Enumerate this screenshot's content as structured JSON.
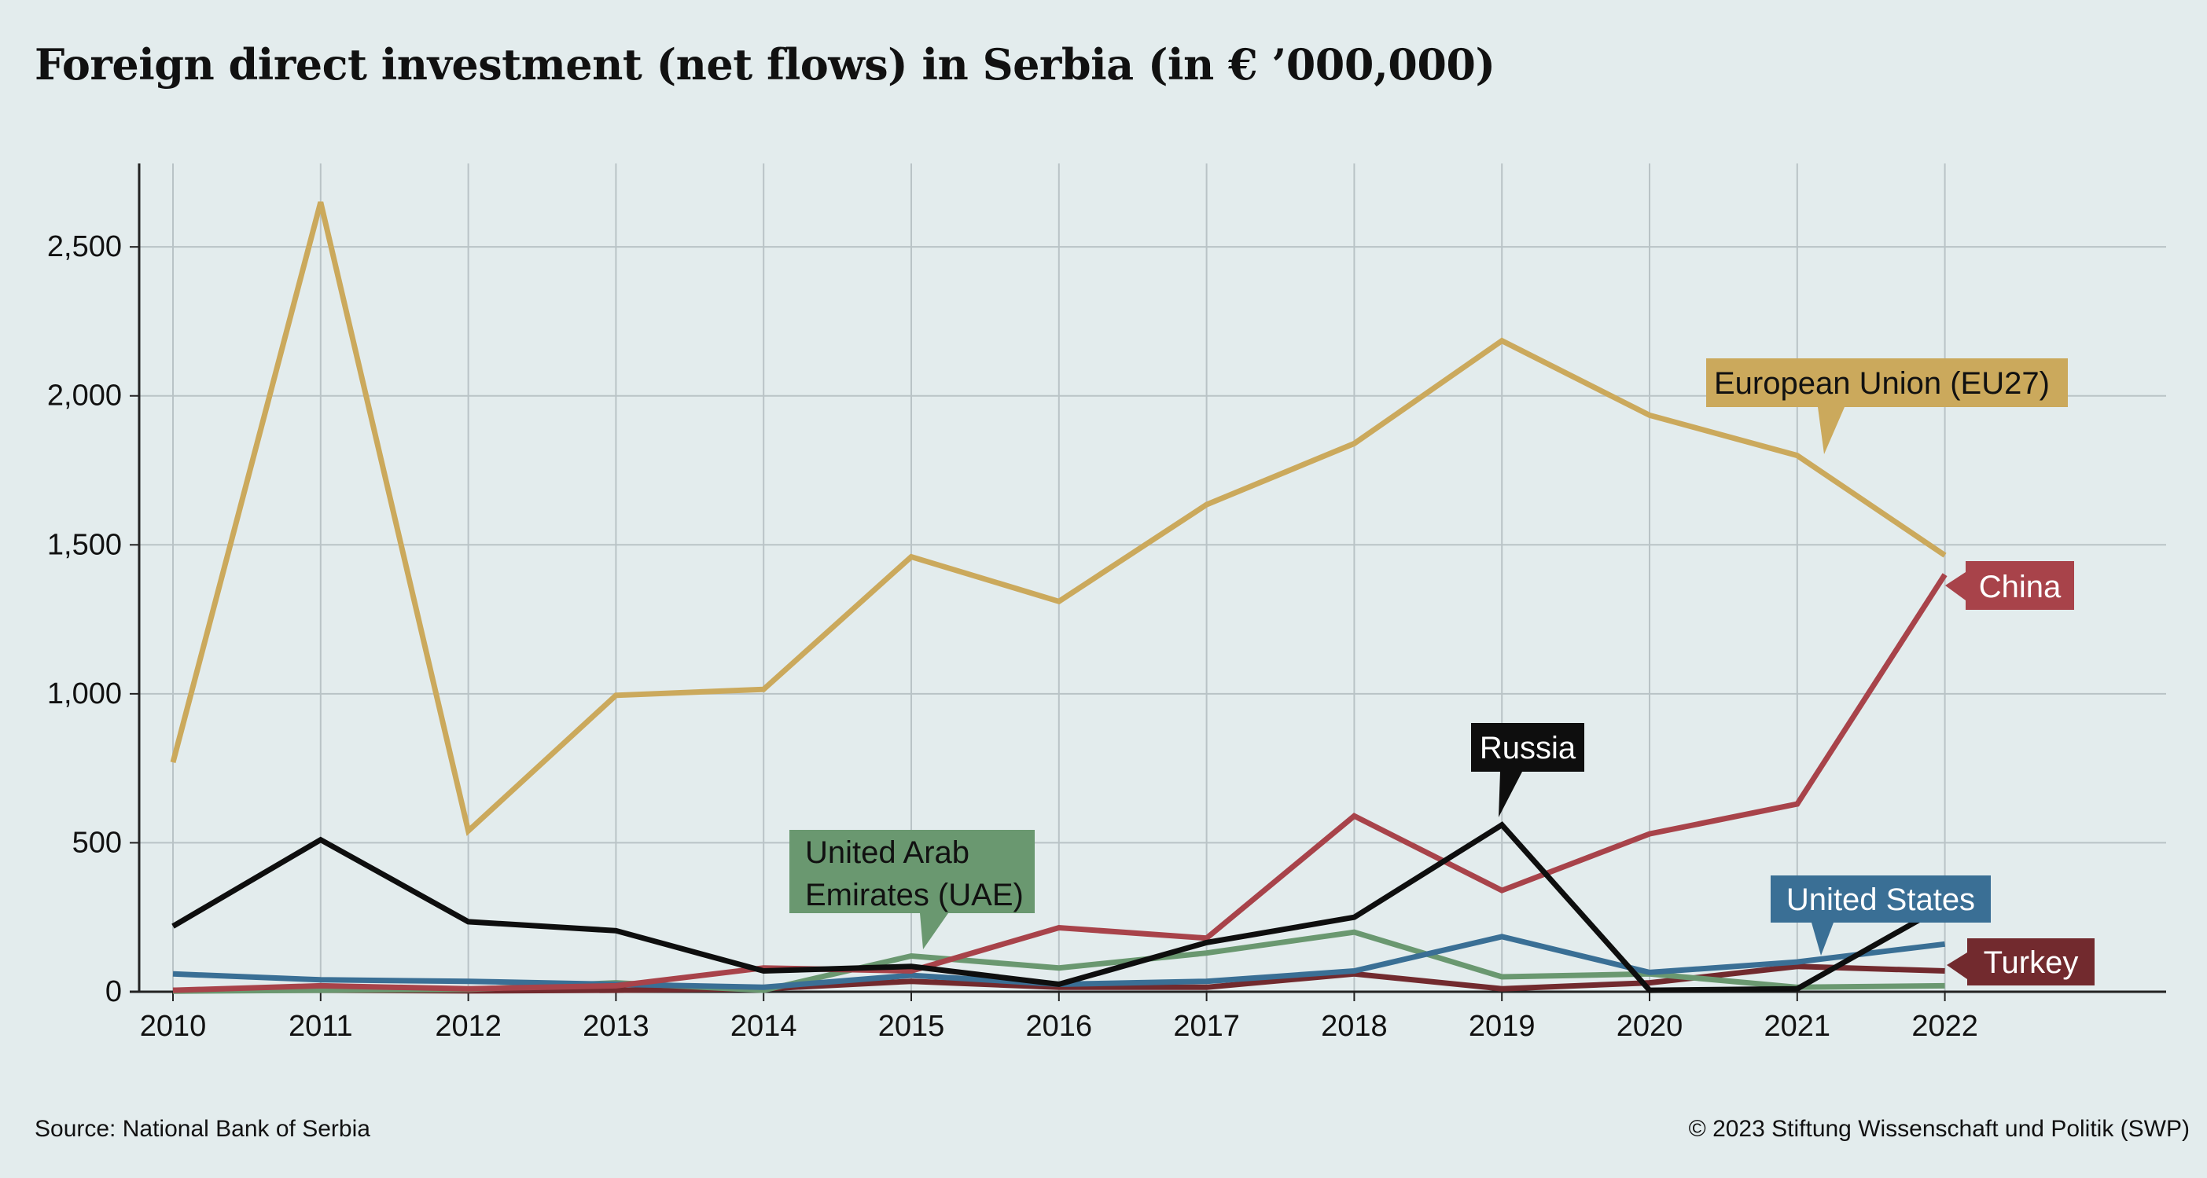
{
  "title": "Foreign direct investment (net flows) in Serbia (in € ’000,000)",
  "source": "Source: National Bank of Serbia",
  "copyright": "© 2023 Stiftung Wissenschaft und Politik (SWP)",
  "chart_data": {
    "type": "line",
    "title": "Foreign direct investment (net flows) in Serbia (in € ’000,000)",
    "xlabel": "",
    "ylabel": "",
    "x": [
      2010,
      2011,
      2012,
      2013,
      2014,
      2015,
      2016,
      2017,
      2018,
      2019,
      2020,
      2021,
      2022
    ],
    "ylim": [
      0,
      2780
    ],
    "yticks": [
      0,
      500,
      1000,
      1500,
      2000,
      2500
    ],
    "ytick_labels": [
      "0",
      "500",
      "1,000",
      "1,500",
      "2,000",
      "2,500"
    ],
    "grid": true,
    "legend": "direct labels",
    "series": [
      {
        "name": "Turkey",
        "color": "#722a2e",
        "values": [
          5,
          5,
          3,
          5,
          10,
          35,
          15,
          15,
          60,
          10,
          30,
          85,
          70
        ]
      },
      {
        "name": "United Arab Emirates (UAE)",
        "label_lines": [
          "United Arab",
          "Emirates (UAE)"
        ],
        "color": "#6a9870",
        "values": [
          2,
          5,
          8,
          30,
          5,
          120,
          80,
          130,
          200,
          50,
          60,
          15,
          20
        ]
      },
      {
        "name": "United States",
        "color": "#3a6f95",
        "values": [
          60,
          40,
          35,
          25,
          15,
          55,
          25,
          35,
          70,
          185,
          65,
          100,
          160
        ]
      },
      {
        "name": "China",
        "color": "#a8434a",
        "values": [
          5,
          20,
          10,
          20,
          80,
          70,
          215,
          180,
          590,
          340,
          530,
          630,
          1400
        ]
      },
      {
        "name": "Russia",
        "color": "#0e0e0e",
        "values": [
          220,
          510,
          235,
          205,
          70,
          85,
          25,
          165,
          250,
          560,
          5,
          10,
          290
        ]
      },
      {
        "name": "European Union (EU27)",
        "color": "#cba95c",
        "values": [
          770,
          2650,
          540,
          995,
          1015,
          1460,
          1310,
          1635,
          1840,
          2185,
          1935,
          1800,
          1465
        ]
      }
    ]
  }
}
